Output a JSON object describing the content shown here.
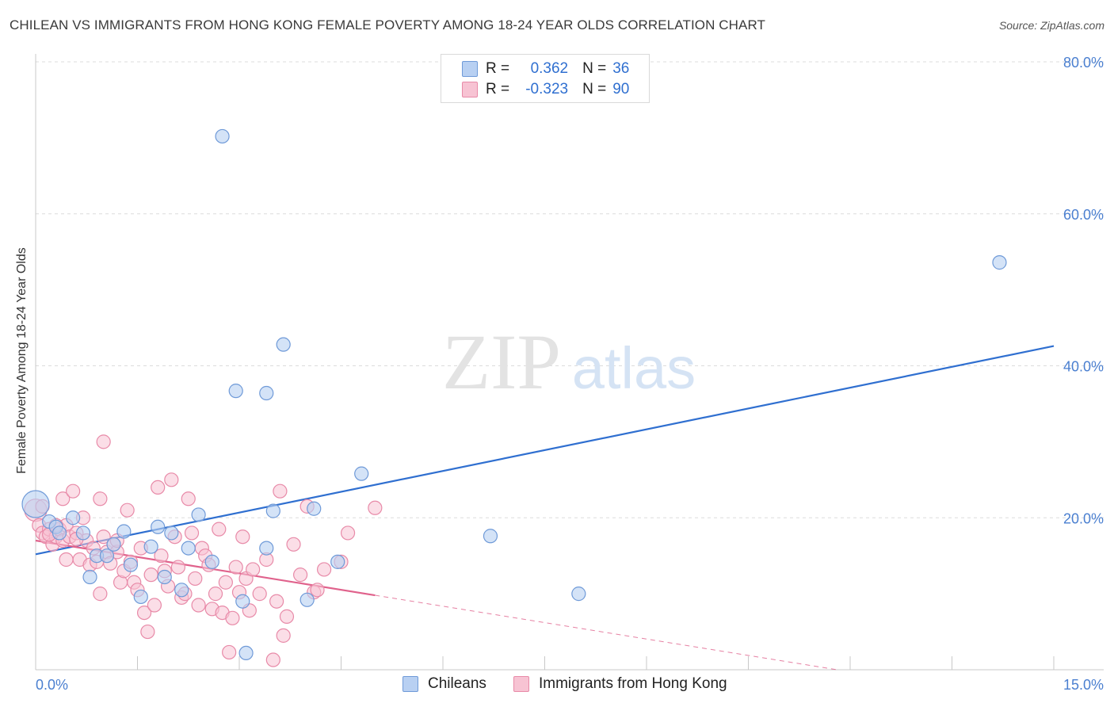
{
  "header": {
    "title": "CHILEAN VS IMMIGRANTS FROM HONG KONG FEMALE POVERTY AMONG 18-24 YEAR OLDS CORRELATION CHART",
    "source": "Source: ZipAtlas.com"
  },
  "legend_top": {
    "rows": [
      {
        "r_label": "R =",
        "r_value": "0.362",
        "n_label": "N =",
        "n_value": "36"
      },
      {
        "r_label": "R =",
        "r_value": "-0.323",
        "n_label": "N =",
        "n_value": "90"
      }
    ]
  },
  "legend_bottom": {
    "items": [
      "Chileans",
      "Immigrants from Hong Kong"
    ]
  },
  "watermark": {
    "zip": "ZIP",
    "atlas": "atlas"
  },
  "colors": {
    "blue_fill": "#b8d0f2",
    "blue_stroke": "#6f9ad8",
    "blue_line": "#2f6fd0",
    "pink_fill": "#f7c3d3",
    "pink_stroke": "#e88aa8",
    "pink_line": "#e0628c",
    "grid": "#dcdcdc",
    "axis_text": "#4a7fd0"
  },
  "chart_data": {
    "type": "scatter",
    "title": "CHILEAN VS IMMIGRANTS FROM HONG KONG FEMALE POVERTY AMONG 18-24 YEAR OLDS CORRELATION CHART",
    "xlabel": "",
    "ylabel": "Female Poverty Among 18-24 Year Olds",
    "xlim": [
      0,
      15
    ],
    "ylim": [
      0,
      80
    ],
    "x_tick_labels": [
      "0.0%",
      "15.0%"
    ],
    "y_ticks": [
      20,
      40,
      60,
      80
    ],
    "y_tick_labels": [
      "20.0%",
      "40.0%",
      "60.0%",
      "80.0%"
    ],
    "grid": true,
    "legend_position": "top-center",
    "series": [
      {
        "name": "Chileans",
        "color": "#6f9ad8",
        "points": [
          [
            0.0,
            21.8
          ],
          [
            0.2,
            19.5
          ],
          [
            0.3,
            18.8
          ],
          [
            0.35,
            18.0
          ],
          [
            0.55,
            20.0
          ],
          [
            0.7,
            18.0
          ],
          [
            0.8,
            12.2
          ],
          [
            0.9,
            15.0
          ],
          [
            1.05,
            15.0
          ],
          [
            1.15,
            16.5
          ],
          [
            1.3,
            18.2
          ],
          [
            1.4,
            13.8
          ],
          [
            1.55,
            9.6
          ],
          [
            1.7,
            16.2
          ],
          [
            1.9,
            12.2
          ],
          [
            1.8,
            18.8
          ],
          [
            2.0,
            18.0
          ],
          [
            2.15,
            10.5
          ],
          [
            2.25,
            16.0
          ],
          [
            2.4,
            20.4
          ],
          [
            2.6,
            14.2
          ],
          [
            2.75,
            70.2
          ],
          [
            2.95,
            36.7
          ],
          [
            3.05,
            9.0
          ],
          [
            3.1,
            2.2
          ],
          [
            3.4,
            16.0
          ],
          [
            3.4,
            36.4
          ],
          [
            3.5,
            20.9
          ],
          [
            3.65,
            42.8
          ],
          [
            4.0,
            9.2
          ],
          [
            4.1,
            21.2
          ],
          [
            4.45,
            14.2
          ],
          [
            4.8,
            25.8
          ],
          [
            6.7,
            17.6
          ],
          [
            8.0,
            10.0
          ],
          [
            14.2,
            53.6
          ]
        ],
        "trend": {
          "x0": 0.0,
          "y0": 15.2,
          "x1": 15.0,
          "y1": 42.6
        }
      },
      {
        "name": "Immigrants from Hong Kong",
        "color": "#e88aa8",
        "points": [
          [
            0.0,
            21.0
          ],
          [
            0.05,
            19.0
          ],
          [
            0.1,
            18.0
          ],
          [
            0.15,
            17.5
          ],
          [
            0.2,
            18.5
          ],
          [
            0.25,
            16.5
          ],
          [
            0.3,
            17.5
          ],
          [
            0.35,
            18.5
          ],
          [
            0.4,
            17.0
          ],
          [
            0.45,
            19.0
          ],
          [
            0.4,
            22.5
          ],
          [
            0.5,
            17.5
          ],
          [
            0.45,
            14.5
          ],
          [
            0.55,
            23.5
          ],
          [
            0.6,
            18.0
          ],
          [
            0.65,
            14.5
          ],
          [
            0.7,
            20.0
          ],
          [
            0.75,
            17.0
          ],
          [
            0.8,
            13.8
          ],
          [
            0.85,
            16.0
          ],
          [
            0.9,
            14.2
          ],
          [
            0.95,
            22.5
          ],
          [
            1.0,
            17.5
          ],
          [
            1.05,
            15.5
          ],
          [
            0.95,
            10.0
          ],
          [
            1.0,
            30.0
          ],
          [
            1.1,
            14.0
          ],
          [
            1.15,
            16.5
          ],
          [
            1.2,
            15.5
          ],
          [
            1.25,
            11.5
          ],
          [
            1.3,
            13.0
          ],
          [
            1.35,
            21.0
          ],
          [
            1.4,
            14.2
          ],
          [
            1.45,
            11.5
          ],
          [
            1.5,
            10.5
          ],
          [
            1.55,
            16.0
          ],
          [
            1.6,
            7.5
          ],
          [
            1.65,
            5.0
          ],
          [
            1.7,
            12.5
          ],
          [
            1.75,
            8.5
          ],
          [
            1.8,
            24.0
          ],
          [
            1.85,
            15.0
          ],
          [
            1.9,
            13.0
          ],
          [
            1.95,
            11.0
          ],
          [
            2.0,
            25.0
          ],
          [
            2.05,
            17.5
          ],
          [
            2.1,
            13.5
          ],
          [
            2.15,
            9.5
          ],
          [
            2.2,
            10.0
          ],
          [
            2.25,
            22.5
          ],
          [
            2.3,
            18.0
          ],
          [
            2.35,
            12.0
          ],
          [
            2.4,
            8.5
          ],
          [
            2.45,
            16.0
          ],
          [
            2.5,
            15.0
          ],
          [
            2.55,
            13.8
          ],
          [
            2.6,
            8.0
          ],
          [
            2.65,
            10.0
          ],
          [
            2.7,
            18.5
          ],
          [
            2.75,
            7.5
          ],
          [
            2.8,
            11.5
          ],
          [
            2.85,
            2.3
          ],
          [
            2.9,
            6.8
          ],
          [
            2.95,
            13.5
          ],
          [
            3.0,
            10.2
          ],
          [
            3.05,
            17.5
          ],
          [
            3.1,
            12.0
          ],
          [
            3.15,
            7.8
          ],
          [
            3.2,
            13.2
          ],
          [
            3.3,
            10.0
          ],
          [
            3.4,
            14.5
          ],
          [
            3.5,
            1.3
          ],
          [
            3.55,
            9.0
          ],
          [
            3.6,
            23.5
          ],
          [
            3.65,
            4.5
          ],
          [
            3.7,
            7.0
          ],
          [
            3.8,
            16.5
          ],
          [
            3.9,
            12.5
          ],
          [
            4.0,
            21.5
          ],
          [
            4.1,
            10.2
          ],
          [
            4.15,
            10.5
          ],
          [
            4.25,
            13.2
          ],
          [
            4.5,
            14.2
          ],
          [
            4.6,
            18.0
          ],
          [
            5.0,
            21.3
          ],
          [
            0.2,
            17.8
          ],
          [
            0.6,
            17.2
          ],
          [
            1.2,
            17.0
          ],
          [
            0.3,
            19.0
          ],
          [
            0.1,
            21.5
          ]
        ],
        "trend": {
          "x0": 0.0,
          "y0": 17.0,
          "x1": 5.0,
          "y1": 9.8
        },
        "trend_dashed_extension": {
          "x0": 5.0,
          "y0": 9.8,
          "x1": 15.0,
          "y1": -4.6
        }
      }
    ]
  }
}
